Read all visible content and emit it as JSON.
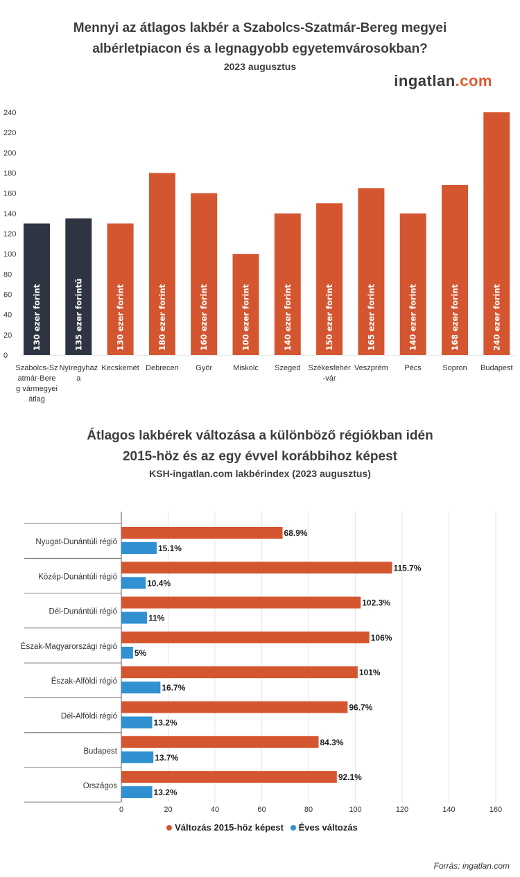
{
  "chart_data": [
    {
      "type": "bar",
      "title": "Mennyi az átlagos lakbér a Szabolcs-Szatmár-Bereg megyei albérletpiacon és a legnagyobb egyetemvárosokban?",
      "subtitle": "2023 augusztus",
      "logo": "ingatlan.com",
      "categories": [
        "Szabolcs-Szatmár-Bereg vármegyei átlag",
        "Nyíregyháza",
        "Kecskemét",
        "Debrecen",
        "Győr",
        "Miskolc",
        "Szeged",
        "Székesfehér-vár",
        "Veszprém",
        "Pécs",
        "Sopron",
        "Budapest"
      ],
      "category_lines": [
        [
          "Szabolcs-Sz",
          "atmár-Bere",
          "g vármegyei",
          "átlag"
        ],
        [
          "Nyíregyház",
          "a"
        ],
        [
          "Kecskemét"
        ],
        [
          "Debrecen"
        ],
        [
          "Győr"
        ],
        [
          "Miskolc"
        ],
        [
          "Szeged"
        ],
        [
          "Székesfehér",
          "-vár"
        ],
        [
          "Veszprém"
        ],
        [
          "Pécs"
        ],
        [
          "Sopron"
        ],
        [
          "Budapest"
        ]
      ],
      "values": [
        130,
        135,
        130,
        180,
        160,
        100,
        140,
        150,
        165,
        140,
        168,
        240
      ],
      "data_labels": [
        "130 ezer forint",
        "135 ezer forintű",
        "130 ezer forint",
        "180 ezer forint",
        "160 ezer forint",
        "100 ezer forint",
        "140 ezer forint",
        "150 ezer forint",
        "165 ezer forint",
        "140 ezer forint",
        "168 ezer forint",
        "240 ezer forint"
      ],
      "highlight": [
        true,
        true,
        false,
        false,
        false,
        false,
        false,
        false,
        false,
        false,
        false,
        false
      ],
      "ylim": [
        0,
        240
      ],
      "yticks": [
        0,
        20,
        40,
        60,
        80,
        100,
        120,
        140,
        160,
        180,
        200,
        220,
        240
      ],
      "colors": {
        "highlight": "#2e3441",
        "default": "#d45630"
      }
    },
    {
      "type": "bar",
      "orientation": "horizontal",
      "title_lines": [
        "Átlagos lakbérek változása a különböző régiókban idén",
        "2015-höz és az egy évvel korábbihoz képest"
      ],
      "subtitle": "KSH-ingatlan.com lakbérindex (2023 augusztus)",
      "categories": [
        "Nyugat-Dunántúli régió",
        "Közép-Dunántúli régió",
        "Dél-Dunántúli régió",
        "Észak-Magyarországi régió",
        "Észak-Alföldi régió",
        "Dél-Alföldi régió",
        "Budapest",
        "Országos"
      ],
      "series": [
        {
          "name": "Változás 2015-höz képest",
          "color": "#d45630",
          "values": [
            68.9,
            115.7,
            102.3,
            106,
            101,
            96.7,
            84.3,
            92.1
          ],
          "labels": [
            "68.9%",
            "115.7%",
            "102.3%",
            "106%",
            "101%",
            "96.7%",
            "84.3%",
            "92.1%"
          ]
        },
        {
          "name": "Éves változás",
          "color": "#3190d0",
          "values": [
            15.1,
            10.4,
            11,
            5,
            16.7,
            13.2,
            13.7,
            13.2
          ],
          "labels": [
            "15.1%",
            "10.4%",
            "11%",
            "5%",
            "16.7%",
            "13.2%",
            "13.7%",
            "13.2%"
          ]
        }
      ],
      "xlim": [
        0,
        160
      ],
      "xticks": [
        0,
        20,
        40,
        60,
        80,
        100,
        120,
        140,
        160
      ],
      "legend_position": "bottom"
    }
  ],
  "source": "Forrás: ingatlan.com"
}
